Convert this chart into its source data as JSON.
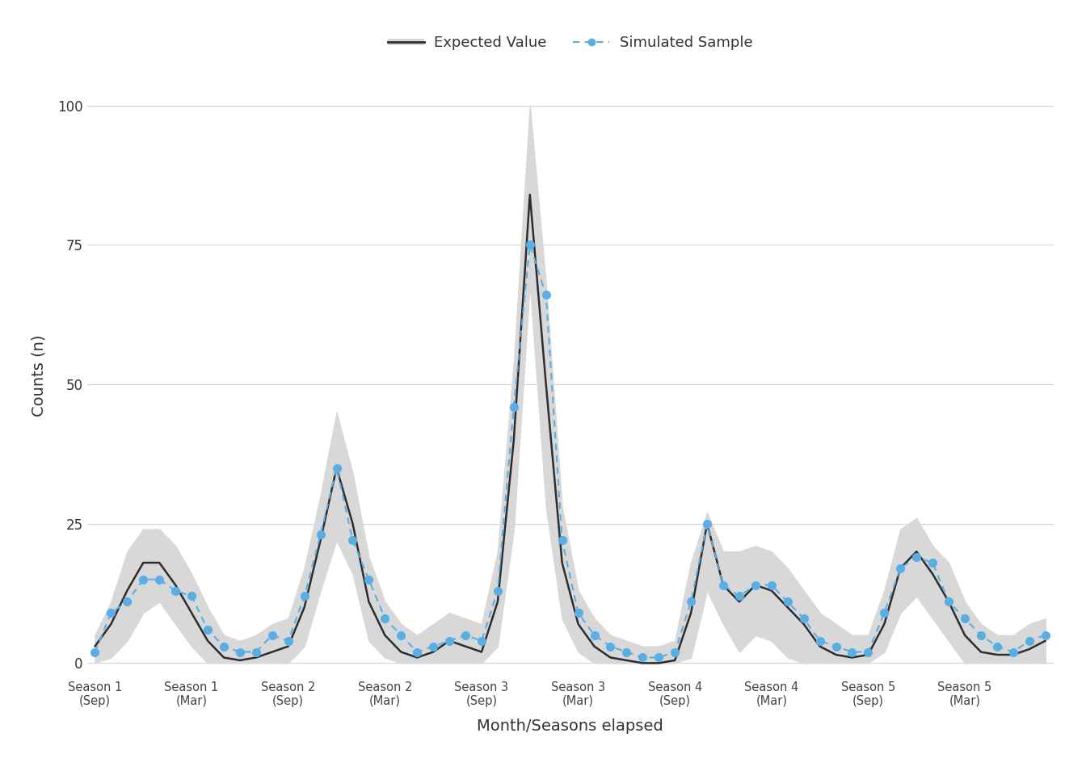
{
  "title": "",
  "xlabel": "Month/Seasons elapsed",
  "ylabel": "Counts (n)",
  "xlim": [
    -0.5,
    59.5
  ],
  "ylim": [
    -2,
    105
  ],
  "yticks": [
    0,
    25,
    50,
    75,
    100
  ],
  "background_color": "#ffffff",
  "grid_color": "#d4d4d4",
  "legend_labels": [
    "Expected Value",
    "Simulated Sample"
  ],
  "expected_color": "#2d2d2d",
  "simulated_color": "#5baee4",
  "ribbon_color": "#d8d8d8",
  "xtick_labels": [
    "Season 1\n(Sep)",
    "Season 1\n(Mar)",
    "Season 2\n(Sep)",
    "Season 2\n(Mar)",
    "Season 3\n(Sep)",
    "Season 3\n(Mar)",
    "Season 4\n(Sep)",
    "Season 4\n(Mar)",
    "Season 5\n(Sep)",
    "Season 5\n(Mar)"
  ],
  "xtick_positions": [
    0,
    6,
    12,
    18,
    24,
    30,
    36,
    42,
    48,
    54
  ],
  "expected_x": [
    0,
    1,
    2,
    3,
    4,
    5,
    6,
    7,
    8,
    9,
    10,
    11,
    12,
    13,
    14,
    15,
    16,
    17,
    18,
    19,
    20,
    21,
    22,
    23,
    24,
    25,
    26,
    27,
    28,
    29,
    30,
    31,
    32,
    33,
    34,
    35,
    36,
    37,
    38,
    39,
    40,
    41,
    42,
    43,
    44,
    45,
    46,
    47,
    48,
    49,
    50,
    51,
    52,
    53,
    54,
    55,
    56,
    57,
    58,
    59
  ],
  "expected_y": [
    3,
    7,
    13,
    18,
    18,
    14,
    9,
    4,
    1,
    0.5,
    1,
    2,
    3,
    10,
    22,
    35,
    25,
    11,
    5,
    2,
    1,
    2,
    4,
    3,
    2,
    11,
    40,
    84,
    50,
    18,
    7,
    3,
    1,
    0.5,
    0,
    0,
    0.5,
    9,
    25,
    14,
    11,
    14,
    13,
    10,
    7,
    3,
    1.5,
    1,
    1.5,
    7,
    17,
    20,
    16,
    11,
    5,
    2,
    1.5,
    1.5,
    2.5,
    4
  ],
  "expected_upper": [
    5,
    11,
    20,
    24,
    24,
    21,
    16,
    10,
    5,
    4,
    5,
    7,
    8,
    17,
    30,
    45,
    34,
    19,
    11,
    7,
    5,
    7,
    9,
    8,
    7,
    20,
    54,
    100,
    68,
    28,
    13,
    8,
    5,
    4,
    3,
    3,
    4,
    18,
    27,
    20,
    20,
    21,
    20,
    17,
    13,
    9,
    7,
    5,
    5,
    13,
    24,
    26,
    21,
    18,
    11,
    7,
    5,
    5,
    7,
    8
  ],
  "expected_lower": [
    0,
    1,
    4,
    9,
    11,
    7,
    3,
    0,
    0,
    0,
    0,
    0,
    0,
    3,
    13,
    22,
    16,
    4,
    1,
    0,
    0,
    0,
    0,
    0,
    0,
    3,
    24,
    68,
    28,
    8,
    2,
    0,
    0,
    0,
    0,
    0,
    0,
    1,
    13,
    7,
    2,
    5,
    4,
    1,
    0,
    0,
    0,
    0,
    0,
    2,
    9,
    12,
    8,
    4,
    0,
    0,
    0,
    0,
    0,
    0
  ],
  "simulated_x": [
    0,
    1,
    2,
    3,
    4,
    5,
    6,
    7,
    8,
    9,
    10,
    11,
    12,
    13,
    14,
    15,
    16,
    17,
    18,
    19,
    20,
    21,
    22,
    23,
    24,
    25,
    26,
    27,
    28,
    29,
    30,
    31,
    32,
    33,
    34,
    35,
    36,
    37,
    38,
    39,
    40,
    41,
    42,
    43,
    44,
    45,
    46,
    47,
    48,
    49,
    50,
    51,
    52,
    53,
    54,
    55,
    56,
    57,
    58,
    59
  ],
  "simulated_y": [
    2,
    9,
    11,
    15,
    15,
    13,
    12,
    6,
    3,
    2,
    2,
    5,
    4,
    12,
    23,
    35,
    22,
    15,
    8,
    5,
    2,
    3,
    4,
    5,
    4,
    13,
    46,
    75,
    66,
    22,
    9,
    5,
    3,
    2,
    1,
    1,
    2,
    11,
    25,
    14,
    12,
    14,
    14,
    11,
    8,
    4,
    3,
    2,
    2,
    9,
    17,
    19,
    18,
    11,
    8,
    5,
    3,
    2,
    4,
    5
  ]
}
